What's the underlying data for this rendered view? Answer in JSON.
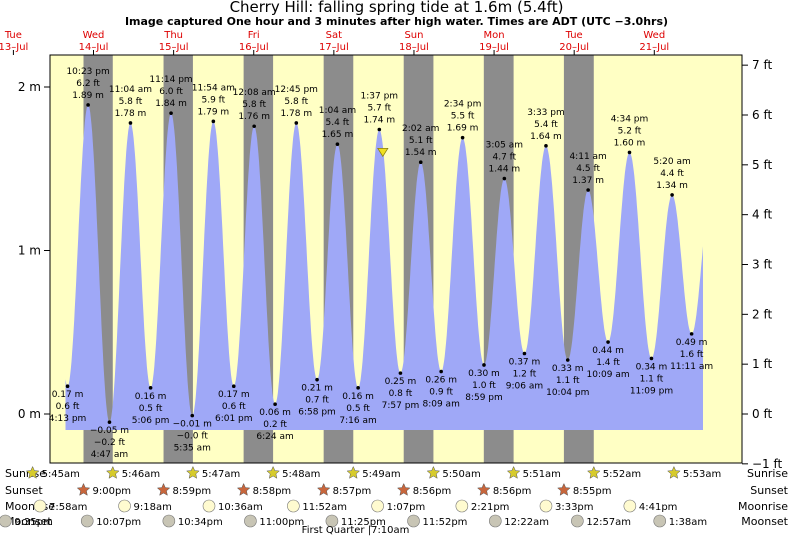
{
  "title": "Cherry Hill: falling  spring tide at 1.6m (5.4ft)",
  "subtitle": "Image captured One hour and 3 minutes after high water. Times are ADT (UTC −3.0hrs)",
  "days": [
    {
      "dow": "Tue",
      "date": "13–Jul"
    },
    {
      "dow": "Wed",
      "date": "14–Jul"
    },
    {
      "dow": "Thu",
      "date": "15–Jul"
    },
    {
      "dow": "Fri",
      "date": "16–Jul"
    },
    {
      "dow": "Sat",
      "date": "17–Jul"
    },
    {
      "dow": "Sun",
      "date": "18–Jul"
    },
    {
      "dow": "Mon",
      "date": "19–Jul"
    },
    {
      "dow": "Tue",
      "date": "20–Jul"
    },
    {
      "dow": "Wed",
      "date": "21–Jul"
    }
  ],
  "chart_data": {
    "type": "area",
    "units_left": "m",
    "units_right": "ft",
    "left_ticks": [
      "2 m",
      "1 m",
      "0 m"
    ],
    "right_ticks": [
      "7 ft",
      "6 ft",
      "5 ft",
      "4 ft",
      "3 ft",
      "2 ft",
      "1 ft",
      "0 ft",
      "−1 ft"
    ],
    "ylim_m": [
      -0.3,
      2.3
    ],
    "tides": [
      {
        "type": "low",
        "time": "4:13 pm",
        "m": "0.17 m",
        "ft": "0.6 ft",
        "x_hours": 16.22,
        "value": 0.17
      },
      {
        "type": "high",
        "time": "10:23 pm",
        "m": "1.89 m",
        "ft": "6.2 ft",
        "x_hours": 22.38,
        "value": 1.89
      },
      {
        "type": "low",
        "time": "4:47 am",
        "m": "−0.05 m",
        "ft": "−0.2 ft",
        "x_hours": 28.78,
        "value": -0.05
      },
      {
        "type": "high",
        "time": "11:04 am",
        "m": "1.78 m",
        "ft": "5.8 ft",
        "x_hours": 35.07,
        "value": 1.78
      },
      {
        "type": "low",
        "time": "5:06 pm",
        "m": "0.16 m",
        "ft": "0.5 ft",
        "x_hours": 41.1,
        "value": 0.16
      },
      {
        "type": "high",
        "time": "11:14 pm",
        "m": "1.84 m",
        "ft": "6.0 ft",
        "x_hours": 47.23,
        "value": 1.84
      },
      {
        "type": "low",
        "time": "5:35 am",
        "m": "−0.01 m",
        "ft": "−0.0 ft",
        "x_hours": 53.58,
        "value": -0.01
      },
      {
        "type": "high",
        "time": "11:54 am",
        "m": "1.79 m",
        "ft": "5.9 ft",
        "x_hours": 59.9,
        "value": 1.79
      },
      {
        "type": "low",
        "time": "6:01 pm",
        "m": "0.17 m",
        "ft": "0.6 ft",
        "x_hours": 66.02,
        "value": 0.17
      },
      {
        "type": "high",
        "time": "12:08 am",
        "m": "1.76 m",
        "ft": "5.8 ft",
        "x_hours": 72.13,
        "value": 1.76
      },
      {
        "type": "low",
        "time": "6:24 am",
        "m": "0.06 m",
        "ft": "0.2 ft",
        "x_hours": 78.4,
        "value": 0.06
      },
      {
        "type": "high",
        "time": "12:45 pm",
        "m": "1.78 m",
        "ft": "5.8 ft",
        "x_hours": 84.75,
        "value": 1.78
      },
      {
        "type": "low",
        "time": "6:58 pm",
        "m": "0.21 m",
        "ft": "0.7 ft",
        "x_hours": 90.97,
        "value": 0.21
      },
      {
        "type": "high",
        "time": "1:04 am",
        "m": "1.65 m",
        "ft": "5.4 ft",
        "x_hours": 97.07,
        "value": 1.65
      },
      {
        "type": "low",
        "time": "7:16 am",
        "m": "0.16 m",
        "ft": "0.5 ft",
        "x_hours": 103.27,
        "value": 0.16
      },
      {
        "type": "high",
        "time": "1:37 pm",
        "m": "1.74 m",
        "ft": "5.7 ft",
        "x_hours": 109.62,
        "value": 1.74
      },
      {
        "type": "low",
        "time": "7:57 pm",
        "m": "0.25 m",
        "ft": "0.8 ft",
        "x_hours": 115.95,
        "value": 0.25
      },
      {
        "type": "high",
        "time": "2:02 am",
        "m": "1.54 m",
        "ft": "5.1 ft",
        "x_hours": 122.03,
        "value": 1.54
      },
      {
        "type": "low",
        "time": "8:09 am",
        "m": "0.26 m",
        "ft": "0.9 ft",
        "x_hours": 128.15,
        "value": 0.26
      },
      {
        "type": "high",
        "time": "2:34 pm",
        "m": "1.69 m",
        "ft": "5.5 ft",
        "x_hours": 134.57,
        "value": 1.69
      },
      {
        "type": "low",
        "time": "8:59 pm",
        "m": "0.30 m",
        "ft": "1.0 ft",
        "x_hours": 140.98,
        "value": 0.3
      },
      {
        "type": "high",
        "time": "3:05 am",
        "m": "1.44 m",
        "ft": "4.7 ft",
        "x_hours": 147.08,
        "value": 1.44
      },
      {
        "type": "low",
        "time": "9:06 am",
        "m": "0.37 m",
        "ft": "1.2 ft",
        "x_hours": 153.1,
        "value": 0.37
      },
      {
        "type": "high",
        "time": "3:33 pm",
        "m": "1.64 m",
        "ft": "5.4 ft",
        "x_hours": 159.55,
        "value": 1.64
      },
      {
        "type": "low",
        "time": "10:04 pm",
        "m": "0.33 m",
        "ft": "1.1 ft",
        "x_hours": 166.07,
        "value": 0.33
      },
      {
        "type": "high",
        "time": "4:11 am",
        "m": "1.37 m",
        "ft": "4.5 ft",
        "x_hours": 172.18,
        "value": 1.37
      },
      {
        "type": "low",
        "time": "10:09 am",
        "m": "0.44 m",
        "ft": "1.4 ft",
        "x_hours": 178.15,
        "value": 0.44
      },
      {
        "type": "high",
        "time": "4:34 pm",
        "m": "1.60 m",
        "ft": "5.2 ft",
        "x_hours": 184.57,
        "value": 1.6
      },
      {
        "type": "low",
        "time": "11:09 pm",
        "m": "0.34 m",
        "ft": "1.1 ft",
        "x_hours": 191.15,
        "value": 0.34
      },
      {
        "type": "high",
        "time": "5:20 am",
        "m": "1.34 m",
        "ft": "4.4 ft",
        "x_hours": 197.33,
        "value": 1.34
      },
      {
        "type": "low",
        "time": "11:11 am",
        "m": "0.49 m",
        "ft": "1.6 ft",
        "x_hours": 203.18,
        "value": 0.49
      }
    ],
    "current": {
      "x_hours": 110.67,
      "value": 1.6
    },
    "night_shading": true,
    "colors": {
      "water": "#9fa8f7",
      "day": "#ffffc4",
      "night": "#8c8c8c",
      "sun": "#d6cb2c",
      "sunset": "#c8663c",
      "moon": "#fffbd0",
      "moonset": "#c8c5b5",
      "title": "#000000",
      "day_label": "#dd0000"
    }
  },
  "almanac": {
    "row_labels": [
      "Sunrise",
      "Sunset",
      "Moonrise",
      "Moonset"
    ],
    "sunrise": [
      {
        "time": "5:45am",
        "x_hours": 5.75
      },
      {
        "time": "5:46am",
        "x_hours": 29.77
      },
      {
        "time": "5:47am",
        "x_hours": 53.78
      },
      {
        "time": "5:48am",
        "x_hours": 77.8
      },
      {
        "time": "5:49am",
        "x_hours": 101.82
      },
      {
        "time": "5:50am",
        "x_hours": 125.83
      },
      {
        "time": "5:51am",
        "x_hours": 149.85
      },
      {
        "time": "5:52am",
        "x_hours": 173.87
      },
      {
        "time": "5:53am",
        "x_hours": 197.88
      }
    ],
    "sunset": [
      {
        "time": "9:00pm",
        "x_hours": 21.0
      },
      {
        "time": "8:59pm",
        "x_hours": 44.98
      },
      {
        "time": "8:58pm",
        "x_hours": 68.97
      },
      {
        "time": "8:57pm",
        "x_hours": 92.95
      },
      {
        "time": "8:56pm",
        "x_hours": 116.93
      },
      {
        "time": "8:56pm",
        "x_hours": 140.93
      },
      {
        "time": "8:55pm",
        "x_hours": 164.92
      }
    ],
    "moonrise": [
      {
        "time": "7:58am",
        "x_hours": 7.97
      },
      {
        "time": "9:18am",
        "x_hours": 33.3
      },
      {
        "time": "10:36am",
        "x_hours": 58.6
      },
      {
        "time": "11:52am",
        "x_hours": 83.87
      },
      {
        "time": "1:07pm",
        "x_hours": 109.12
      },
      {
        "time": "2:21pm",
        "x_hours": 134.35
      },
      {
        "time": "3:33pm",
        "x_hours": 159.55
      },
      {
        "time": "4:41pm",
        "x_hours": 184.68
      }
    ],
    "moonset": [
      {
        "time": "9:35pm",
        "x_hours": -2.42
      },
      {
        "time": "10:07pm",
        "x_hours": 22.12
      },
      {
        "time": "10:34pm",
        "x_hours": 46.57
      },
      {
        "time": "11:00pm",
        "x_hours": 71.0
      },
      {
        "time": "11:25pm",
        "x_hours": 95.42
      },
      {
        "time": "11:52pm",
        "x_hours": 119.87
      },
      {
        "time": "12:22am",
        "x_hours": 144.37
      },
      {
        "time": "12:57am",
        "x_hours": 168.95
      },
      {
        "time": "1:38am",
        "x_hours": 193.63
      }
    ],
    "phase_note": "First Quarter |7:10am"
  }
}
